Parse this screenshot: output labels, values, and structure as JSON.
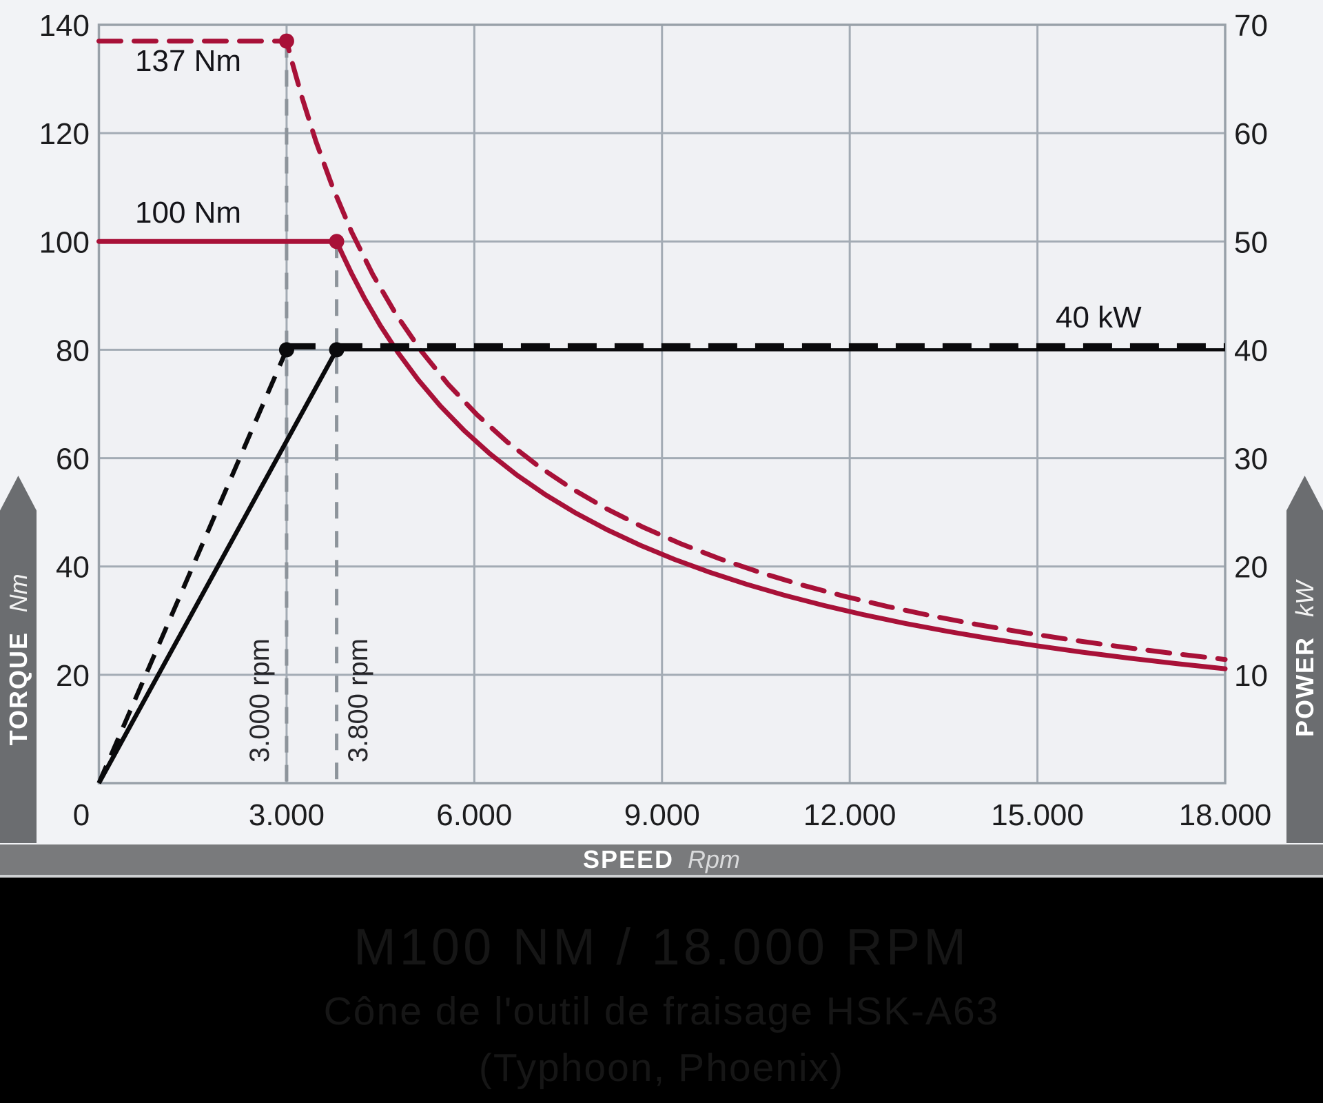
{
  "colors": {
    "page_bg": "#f2f3f6",
    "plot_bg": "#f0f1f4",
    "grid": "#a3abb4",
    "border": "#99a1a9",
    "accent_red": "#a81138",
    "curve_black": "#0a0a0c",
    "ref_gray": "#8d949b",
    "banner_gray": "#6b6d70",
    "bar_gray": "#797a7c",
    "footer_bg": "#000000",
    "footer_text": "#161616",
    "tick_text": "#1c1c1e"
  },
  "axis_banners": {
    "left": {
      "label": "TORQUE",
      "unit": "Nm"
    },
    "right": {
      "label": "POWER",
      "unit": "kW"
    },
    "bottom": {
      "label": "SPEED",
      "unit": "Rpm"
    }
  },
  "chart_data": {
    "type": "line",
    "grid": true,
    "x_axis": {
      "min": 0,
      "max": 18000,
      "ticks": [
        {
          "v": 0,
          "label": "0"
        },
        {
          "v": 3000,
          "label": "3.000"
        },
        {
          "v": 6000,
          "label": "6.000"
        },
        {
          "v": 9000,
          "label": "9.000"
        },
        {
          "v": 12000,
          "label": "12.000"
        },
        {
          "v": 15000,
          "label": "15.000"
        },
        {
          "v": 18000,
          "label": "18.000"
        }
      ]
    },
    "y_left": {
      "min": 0,
      "max": 140,
      "ticks": [
        {
          "v": 20,
          "label": "20"
        },
        {
          "v": 40,
          "label": "40"
        },
        {
          "v": 60,
          "label": "60"
        },
        {
          "v": 80,
          "label": "80"
        },
        {
          "v": 100,
          "label": "100"
        },
        {
          "v": 120,
          "label": "120"
        },
        {
          "v": 140,
          "label": "140"
        }
      ]
    },
    "y_right": {
      "min": 0,
      "max": 70,
      "ticks": [
        {
          "v": 10,
          "label": "10"
        },
        {
          "v": 20,
          "label": "20"
        },
        {
          "v": 30,
          "label": "30"
        },
        {
          "v": 40,
          "label": "40"
        },
        {
          "v": 50,
          "label": "50"
        },
        {
          "v": 60,
          "label": "60"
        },
        {
          "v": 70,
          "label": "70"
        }
      ]
    },
    "series": [
      {
        "id": "torque-peak",
        "kind": "torque",
        "style": "dashed",
        "color": "#a81138",
        "flat_torque": 137,
        "corner_rpm": 3000,
        "end_rpm": 18000
      },
      {
        "id": "torque-cont",
        "kind": "torque",
        "style": "solid",
        "color": "#a81138",
        "flat_torque": 100,
        "corner_rpm": 3800,
        "end_rpm": 18000
      },
      {
        "id": "power-peak",
        "kind": "power",
        "style": "dashed",
        "color": "#0a0a0c",
        "flat_kw": 40,
        "corner_rpm": 3000,
        "end_rpm": 18000
      },
      {
        "id": "power-cont",
        "kind": "power",
        "style": "solid",
        "color": "#0a0a0c",
        "flat_kw": 40,
        "corner_rpm": 3800,
        "end_rpm": 18000
      }
    ],
    "reference_lines": [
      {
        "rpm": 3000,
        "top_torque": 137
      },
      {
        "rpm": 3800,
        "top_torque": 100
      }
    ],
    "labels": {
      "peak_torque": "137 Nm",
      "cont_torque": "100 Nm",
      "power": "40 kW",
      "corner_speed_1": "3.000 rpm",
      "corner_speed_2": "3.800 rpm"
    }
  },
  "footer": {
    "line1": "M100 NM / 18.000 RPM",
    "line2": "Cône de l'outil de fraisage HSK-A63",
    "line3": "(Typhoon, Phoenix)"
  }
}
